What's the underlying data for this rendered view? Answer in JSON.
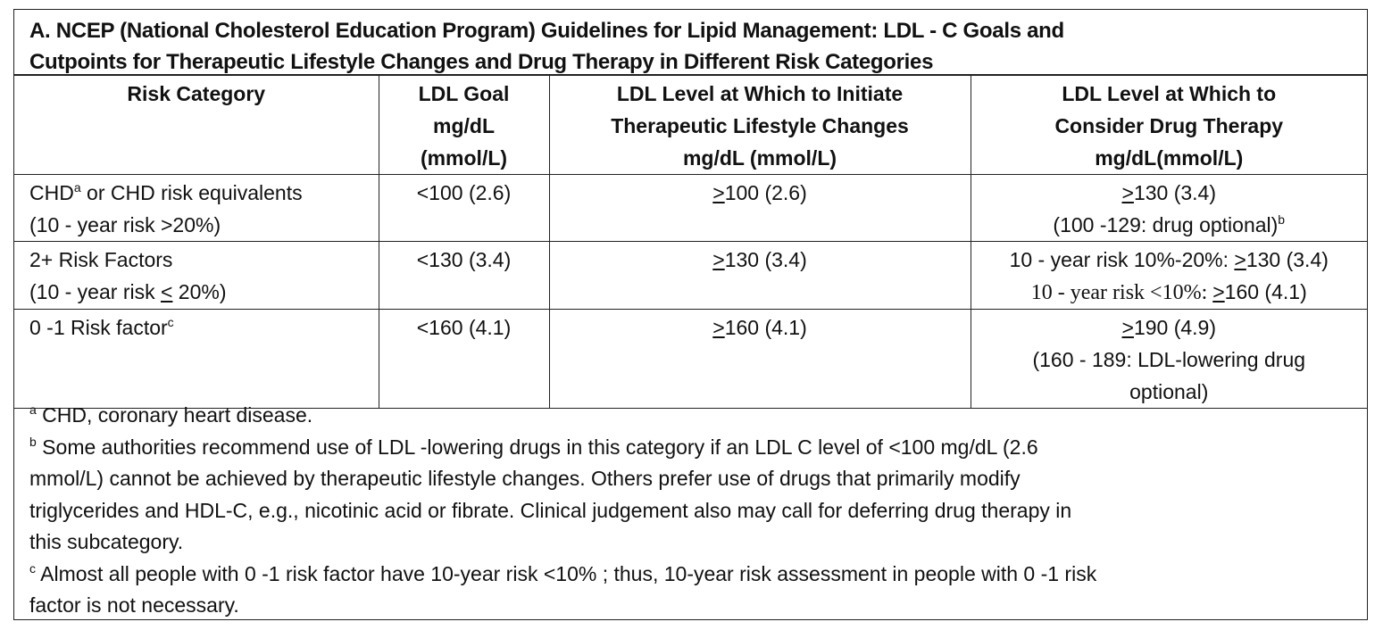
{
  "title": {
    "line1": "A. NCEP (National Cholesterol Education Program) Guidelines for Lipid Management: LDL - C Goals and",
    "line2": "Cutpoints for Therapeutic Lifestyle Changes and Drug Therapy in Different Risk Categories"
  },
  "headers": [
    {
      "lines": [
        "Risk Category"
      ]
    },
    {
      "lines": [
        "LDL Goal",
        "mg/dL",
        "(mmol/L)"
      ]
    },
    {
      "lines": [
        "LDL Level at Which to Initiate",
        "Therapeutic Lifestyle Changes",
        "mg/dL (mmol/L)"
      ]
    },
    {
      "lines": [
        "LDL Level at Which to",
        "Consider Drug Therapy",
        "mg/dL(mmol/L)"
      ]
    }
  ],
  "rows": [
    {
      "category": {
        "line1_pre": "CHD",
        "line1_sup": "a",
        "line1_post": " or CHD risk equivalents",
        "line2": "(10 - year risk >20%)"
      },
      "goal": "<100 (2.6)",
      "tlc": {
        "sym": ">",
        "val": "100 (2.6)"
      },
      "drug": {
        "line1_sym": ">",
        "line1_val": "130 (3.4)",
        "line2": "(100  -129: drug optional)",
        "line2_sup": "b"
      }
    },
    {
      "category": {
        "line1": "2+ Risk Factors",
        "line2_pre": "(10 - year risk ",
        "line2_sym": "<",
        "line2_post": " 20%)"
      },
      "goal": "<130 (3.4)",
      "tlc": {
        "sym": ">",
        "val": "130 (3.4)"
      },
      "drug": {
        "line1_pre": "10 - year risk 10%-20%:  ",
        "line1_sym": ">",
        "line1_val": "130 (3.4)",
        "line2_pre": "10 - year risk <10%: ",
        "line2_sym": ">",
        "line2_val": "160 (4.1)"
      }
    },
    {
      "category": {
        "line1_pre": "0 -1 Risk factor",
        "line1_sup": "c"
      },
      "goal": "<160 (4.1)",
      "tlc": {
        "sym": ">",
        "val": "160 (4.1)"
      },
      "drug": {
        "line1_sym": ">",
        "line1_val": "190 (4.9)",
        "line2": "(160 - 189: LDL-lowering drug",
        "line3": "optional)"
      }
    }
  ],
  "footnotes": {
    "a": {
      "mark": "a",
      "lines": [
        " CHD, coronary heart disease."
      ]
    },
    "b": {
      "mark": "b",
      "lines": [
        "  Some authorities recommend use of LDL -lowering drugs in this category if an LDL  C level of <100 mg/dL (2.6",
        "mmol/L) cannot be achieved by therapeutic lifestyle changes. Others prefer use of drugs that primarily modify",
        "triglycerides and HDL-C, e.g., nicotinic acid or fibrate. Clinical judgement also may call for deferring drug therapy in",
        "this subcategory."
      ]
    },
    "c": {
      "mark": "c",
      "lines": [
        " Almost all people with 0 -1 risk factor have 10-year risk <10% ; thus, 10-year risk assessment in people with 0 -1 risk",
        "factor is not necessary."
      ]
    }
  }
}
